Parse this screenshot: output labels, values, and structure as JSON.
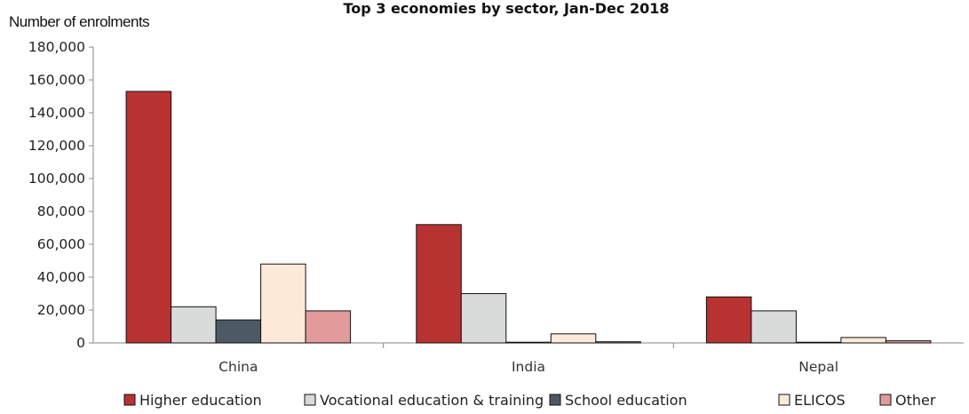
{
  "chart_data": {
    "type": "bar",
    "title": "Top 3 economies by sector, Jan-Dec 2018",
    "ylabel": "Number of enrolments",
    "xlabel": "",
    "ylim": [
      0,
      180000
    ],
    "yticks": [
      0,
      20000,
      40000,
      60000,
      80000,
      100000,
      120000,
      140000,
      160000,
      180000
    ],
    "ytick_labels": [
      "0",
      "20,000",
      "40,000",
      "60,000",
      "80,000",
      "100,000",
      "120,000",
      "140,000",
      "160,000",
      "180,000"
    ],
    "categories": [
      "China",
      "India",
      "Nepal"
    ],
    "series": [
      {
        "name": "Higher education",
        "color": "#b83232",
        "values": [
          153000,
          72000,
          28000
        ]
      },
      {
        "name": "Vocational education & training",
        "color": "#d9dbdb",
        "values": [
          22000,
          30000,
          19500
        ]
      },
      {
        "name": "School education",
        "color": "#4d5965",
        "values": [
          14000,
          300,
          200
        ]
      },
      {
        "name": "ELICOS",
        "color": "#fde9d7",
        "values": [
          48000,
          5500,
          3300
        ]
      },
      {
        "name": "Other",
        "color": "#e29a9a",
        "values": [
          19500,
          700,
          1300
        ]
      }
    ],
    "grid": false,
    "legend": "bottom"
  }
}
